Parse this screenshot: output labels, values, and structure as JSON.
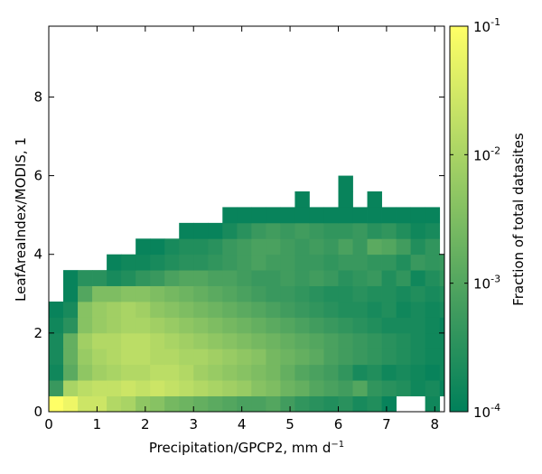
{
  "chart_data": {
    "type": "heatmap",
    "xlabel": "Precipitation/GPCP2,  mm d",
    "xlabel_superscript": "−1",
    "ylabel": "LeafAreaIndex/MODIS,  1",
    "colorbar_label": "Fraction of total datasites",
    "xlim": [
      0,
      8.2
    ],
    "ylim": [
      0,
      9.8
    ],
    "x_ticks": [
      0,
      1,
      2,
      3,
      4,
      5,
      6,
      7,
      8
    ],
    "x_tick_labels": [
      "0",
      "1",
      "2",
      "3",
      "4",
      "5",
      "6",
      "7",
      "8"
    ],
    "y_ticks": [
      0,
      2,
      4,
      6,
      8
    ],
    "y_tick_labels": [
      "0",
      "2",
      "4",
      "6",
      "8"
    ],
    "colorbar_scale": "log",
    "colorbar_range": [
      0.0001,
      0.1
    ],
    "colorbar_ticks": [
      {
        "base": "10",
        "exp": "-1",
        "value": 0.1
      },
      {
        "base": "10",
        "exp": "-2",
        "value": 0.01
      },
      {
        "base": "10",
        "exp": "-3",
        "value": 0.001
      },
      {
        "base": "10",
        "exp": "-4",
        "value": 0.0001
      }
    ],
    "colormap": [
      "#00805a",
      "#3d9a5e",
      "#7ebd62",
      "#bfdf66",
      "#ffff66"
    ],
    "bin_width_x": 0.3,
    "bin_height_y": 0.4,
    "log10_fraction_rows_bottom_to_top": [
      [
        -1.0,
        -1.2,
        -1.6,
        -1.6,
        -1.9,
        -2.0,
        -2.3,
        -2.4,
        -2.6,
        -2.7,
        -2.8,
        -2.9,
        -3.0,
        -3.1,
        -3.1,
        -3.0,
        -3.2,
        -3.4,
        -3.5,
        -3.6,
        -3.5,
        -3.7,
        -3.6,
        -3.9,
        null,
        null,
        -3.8,
        null,
        null,
        null,
        null,
        null,
        null,
        null,
        null,
        null,
        null,
        null,
        null,
        null
      ],
      [
        -3.3,
        -2.0,
        -1.8,
        -1.7,
        -1.7,
        -1.6,
        -1.7,
        -1.6,
        -1.7,
        -1.8,
        -1.9,
        -2.0,
        -2.1,
        -2.2,
        -2.4,
        -2.5,
        -2.7,
        -2.8,
        -3.0,
        -3.1,
        -3.2,
        -3.0,
        -3.4,
        -3.5,
        -3.6,
        -3.8,
        -3.7,
        -3.9,
        -4.0,
        -3.8,
        -3.9,
        null,
        null,
        null,
        null,
        null,
        null,
        null,
        null,
        null
      ],
      [
        -3.8,
        -2.9,
        -2.3,
        -2.1,
        -2.0,
        -1.9,
        -1.9,
        -1.8,
        -1.8,
        -1.9,
        -2.1,
        -2.2,
        -2.3,
        -2.4,
        -2.5,
        -2.6,
        -2.8,
        -3.0,
        -3.1,
        -3.2,
        -3.4,
        -3.7,
        -3.6,
        -3.8,
        -3.7,
        -3.8,
        -3.9,
        -3.8,
        -3.6,
        -3.9,
        -3.6,
        null,
        null,
        null,
        null,
        null,
        null,
        null,
        null,
        null
      ],
      [
        -3.7,
        -2.8,
        -2.2,
        -2.0,
        -1.9,
        -1.8,
        -1.8,
        -1.9,
        -1.9,
        -2.0,
        -2.0,
        -2.1,
        -2.2,
        -2.3,
        -2.4,
        -2.6,
        -2.7,
        -2.8,
        -2.9,
        -3.1,
        -3.2,
        -3.3,
        -3.4,
        -3.5,
        -3.6,
        -3.7,
        -3.8,
        -3.8,
        -3.9,
        -3.9,
        -3.8,
        null,
        null,
        null,
        null,
        null,
        null,
        null,
        null,
        null
      ],
      [
        -3.7,
        -2.8,
        -2.1,
        -1.9,
        -1.9,
        -1.8,
        -1.8,
        -1.9,
        -2.0,
        -2.1,
        -2.2,
        -2.3,
        -2.4,
        -2.5,
        -2.6,
        -2.7,
        -2.8,
        -2.9,
        -3.0,
        -3.1,
        -3.2,
        -3.3,
        -3.4,
        -3.5,
        -3.6,
        -3.7,
        -3.8,
        -3.8,
        -3.7,
        -3.9,
        -3.7,
        null,
        null,
        null,
        null,
        null,
        null,
        null,
        null,
        null
      ],
      [
        -3.8,
        -3.5,
        -2.4,
        -2.2,
        -2.1,
        -2.0,
        -2.0,
        -2.1,
        -2.2,
        -2.3,
        -2.4,
        -2.5,
        -2.6,
        -2.7,
        -2.8,
        -2.9,
        -3.0,
        -3.1,
        -3.2,
        -3.3,
        -3.4,
        -3.5,
        -3.6,
        -3.7,
        -3.7,
        -3.7,
        -3.8,
        -3.9,
        -3.8,
        -3.8,
        -3.8,
        null,
        null,
        null,
        null,
        null,
        null,
        null,
        null,
        null
      ],
      [
        -3.9,
        -3.7,
        -2.4,
        -2.2,
        -2.1,
        -2.0,
        -2.1,
        -2.3,
        -2.4,
        -2.5,
        -2.6,
        -2.7,
        -2.8,
        -2.9,
        -3.0,
        -3.1,
        -3.2,
        -3.3,
        -3.4,
        -3.5,
        -3.6,
        -3.6,
        -3.7,
        -3.6,
        -3.8,
        -3.7,
        -3.8,
        -3.7,
        -3.7,
        -3.8,
        -3.9,
        null,
        null,
        null,
        null,
        null,
        null,
        null,
        null,
        null
      ],
      [
        null,
        -3.9,
        -3.0,
        -2.5,
        -2.5,
        -2.4,
        -2.4,
        -2.5,
        -2.6,
        -2.7,
        -2.8,
        -2.9,
        -3.0,
        -3.1,
        -3.2,
        -3.3,
        -3.3,
        -3.4,
        -3.5,
        -3.6,
        -3.6,
        -3.5,
        -3.6,
        -3.6,
        -3.7,
        -3.6,
        -3.7,
        -3.6,
        -3.8,
        -3.7,
        -3.9,
        null,
        null,
        null,
        null,
        null,
        null,
        null,
        null,
        null
      ],
      [
        null,
        -3.9,
        -3.5,
        -3.5,
        -3.7,
        -3.6,
        -3.4,
        -3.3,
        -3.1,
        -3.0,
        -3.0,
        -3.1,
        -3.1,
        -3.2,
        -3.3,
        -3.3,
        -3.2,
        -3.3,
        -3.2,
        -3.3,
        -3.5,
        -3.4,
        -3.3,
        -3.6,
        -3.4,
        -3.8,
        -3.6,
        -3.4,
        -3.5,
        -3.9,
        -3.9,
        null,
        null,
        null,
        null,
        null,
        null,
        null,
        null,
        null
      ],
      [
        null,
        null,
        null,
        null,
        -3.9,
        -3.8,
        -3.8,
        -3.7,
        -3.6,
        -3.5,
        -3.5,
        -3.4,
        -3.3,
        -3.2,
        -3.1,
        -3.2,
        -3.2,
        -3.3,
        -3.3,
        -3.4,
        -3.3,
        -3.3,
        -3.4,
        -3.4,
        -3.6,
        -3.3,
        -3.4,
        -3.3,
        -3.8,
        -3.4,
        -3.9,
        null,
        null,
        null,
        null,
        null,
        null,
        null,
        null,
        null
      ],
      [
        null,
        null,
        null,
        null,
        null,
        null,
        -3.9,
        -3.9,
        -3.7,
        -3.6,
        -3.6,
        -3.5,
        -3.3,
        -3.2,
        -3.1,
        -3.1,
        -3.2,
        -3.3,
        -3.2,
        -3.3,
        -3.1,
        -3.3,
        -2.9,
        -3.0,
        -3.2,
        -3.6,
        -3.4,
        null,
        null,
        null,
        null,
        null,
        null,
        null,
        null,
        null,
        null,
        null,
        null,
        null
      ],
      [
        null,
        null,
        null,
        null,
        null,
        null,
        null,
        null,
        null,
        -3.9,
        -3.9,
        -3.9,
        -3.7,
        -3.5,
        -3.3,
        -3.2,
        -3.3,
        -3.2,
        -3.3,
        -3.4,
        -3.4,
        -3.3,
        -3.5,
        -3.4,
        -3.6,
        -3.8,
        -3.7,
        null,
        null,
        null,
        null,
        null,
        null,
        null,
        null,
        null,
        null,
        null,
        null,
        null
      ],
      [
        null,
        null,
        null,
        null,
        null,
        null,
        null,
        null,
        null,
        null,
        null,
        null,
        -3.9,
        -3.9,
        -3.9,
        -3.9,
        -3.9,
        -3.9,
        -3.9,
        -3.9,
        -3.9,
        -3.9,
        -3.9,
        -3.9,
        -3.9,
        -3.9,
        -3.9,
        null,
        null,
        null,
        null,
        null,
        null,
        null,
        null,
        null,
        null,
        null,
        null,
        null
      ],
      [
        null,
        null,
        null,
        null,
        null,
        null,
        null,
        null,
        null,
        null,
        null,
        null,
        null,
        null,
        null,
        null,
        null,
        -3.9,
        null,
        null,
        -3.9,
        null,
        -3.9,
        null,
        null,
        null,
        null,
        null,
        null,
        null,
        null,
        null,
        null,
        null,
        null,
        null,
        null,
        null,
        null,
        null
      ],
      [
        null,
        null,
        null,
        null,
        null,
        null,
        null,
        null,
        null,
        null,
        null,
        null,
        null,
        null,
        null,
        null,
        null,
        null,
        null,
        null,
        -3.9,
        null,
        null,
        null,
        null,
        null,
        null,
        null,
        null,
        null,
        null,
        null,
        null,
        null,
        null,
        null,
        null,
        null,
        null,
        null
      ]
    ]
  }
}
